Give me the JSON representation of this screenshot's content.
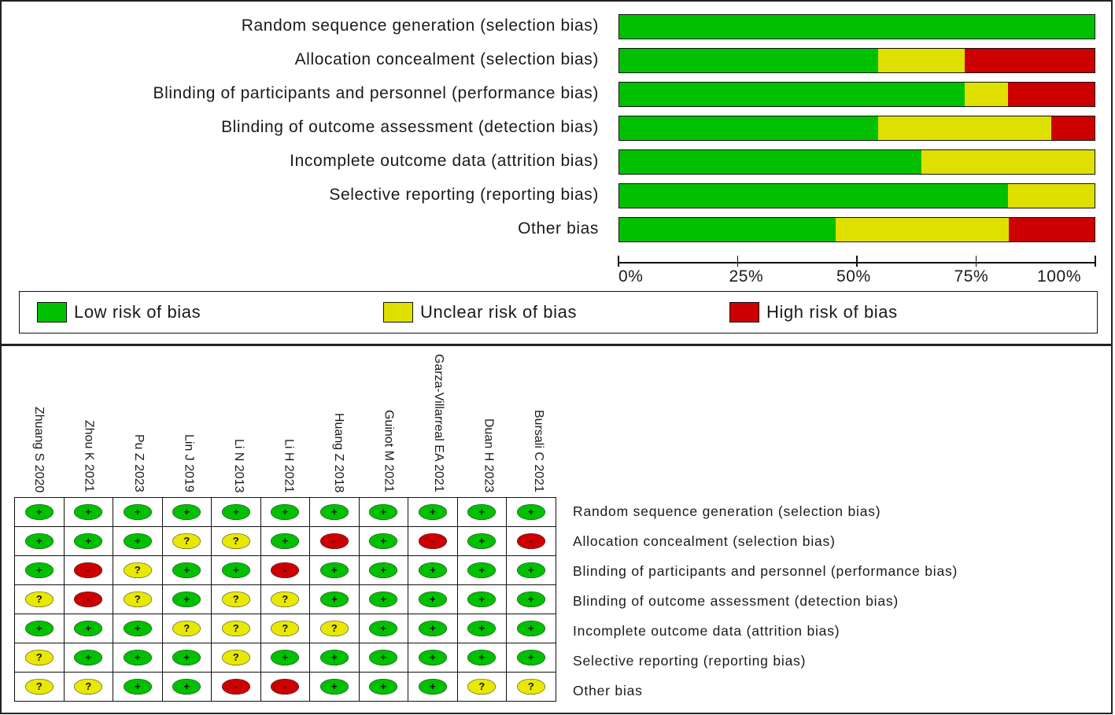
{
  "chart_data": [
    {
      "type": "bar",
      "orientation": "horizontal",
      "stacked": "percent",
      "categories": [
        "Random sequence generation (selection bias)",
        "Allocation concealment (selection bias)",
        "Blinding of participants and personnel (performance bias)",
        "Blinding of outcome assessment (detection bias)",
        "Incomplete outcome data (attrition bias)",
        "Selective reporting (reporting bias)",
        "Other bias"
      ],
      "series": [
        {
          "name": "Low risk of bias",
          "color": "#00c000",
          "values": [
            100,
            54.5,
            72.7,
            54.5,
            63.6,
            81.8,
            45.5
          ]
        },
        {
          "name": "Unclear risk of bias",
          "color": "#e0e000",
          "values": [
            0,
            18.2,
            9.1,
            36.4,
            36.4,
            18.2,
            36.4
          ]
        },
        {
          "name": "High risk of bias",
          "color": "#cc0000",
          "values": [
            0,
            27.3,
            18.2,
            9.1,
            0,
            0,
            18.1
          ]
        }
      ],
      "xlim": [
        0,
        100
      ],
      "x_ticks": [
        "0%",
        "25%",
        "50%",
        "75%",
        "100%"
      ],
      "legend_position": "bottom"
    },
    {
      "type": "table",
      "studies": [
        "Zhuang S 2020",
        "Zhou K 2021",
        "Pu Z 2023",
        "Lin J 2019",
        "Li N 2013",
        "Li H 2021",
        "Huang Z 2018",
        "Guinot M 2021",
        "Garza-Villarreal EA 2021",
        "Duan H 2023",
        "Bursali C 2021"
      ],
      "domains": [
        "Random sequence generation (selection bias)",
        "Allocation concealment (selection bias)",
        "Blinding of participants and personnel (performance bias)",
        "Blinding of outcome assessment (detection bias)",
        "Incomplete outcome data (attrition bias)",
        "Selective reporting (reporting bias)",
        "Other bias"
      ],
      "judgements": [
        [
          "+",
          "+",
          "+",
          "+",
          "+",
          "+",
          "+",
          "+",
          "+",
          "+",
          "+"
        ],
        [
          "+",
          "+",
          "+",
          "?",
          "?",
          "+",
          "-",
          "+",
          "-",
          "+",
          "-"
        ],
        [
          "+",
          "-",
          "?",
          "+",
          "+",
          "-",
          "+",
          "+",
          "+",
          "+",
          "+"
        ],
        [
          "?",
          "-",
          "?",
          "+",
          "?",
          "?",
          "+",
          "+",
          "+",
          "+",
          "+"
        ],
        [
          "+",
          "+",
          "+",
          "?",
          "?",
          "?",
          "?",
          "+",
          "+",
          "+",
          "+"
        ],
        [
          "?",
          "+",
          "+",
          "+",
          "?",
          "+",
          "+",
          "+",
          "+",
          "+",
          "+"
        ],
        [
          "?",
          "?",
          "+",
          "+",
          "-",
          "-",
          "+",
          "+",
          "+",
          "?",
          "?"
        ]
      ],
      "symbol_colors": {
        "+": "#00c000",
        "?": "#e8e800",
        "-": "#cc0000"
      }
    }
  ],
  "legend": {
    "low": "Low risk of bias",
    "unclear": "Unclear risk of bias",
    "high": "High risk of bias"
  }
}
